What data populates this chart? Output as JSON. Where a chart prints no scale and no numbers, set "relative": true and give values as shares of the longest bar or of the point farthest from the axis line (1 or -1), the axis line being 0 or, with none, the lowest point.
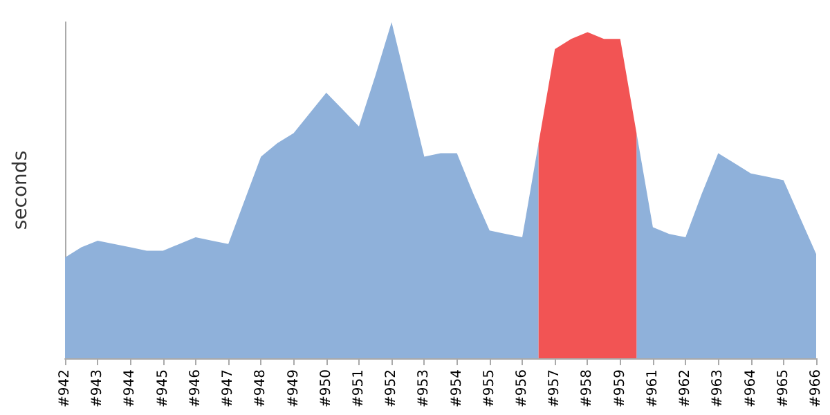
{
  "chart_data": {
    "type": "area",
    "ylabel": "seconds",
    "relative": true,
    "marker": "none",
    "categories": [
      "#942",
      null,
      "#943",
      null,
      "#944",
      null,
      "#945",
      null,
      "#946",
      null,
      "#947",
      null,
      "#948",
      null,
      "#949",
      null,
      "#950",
      null,
      "#951",
      null,
      "#952",
      null,
      "#953",
      null,
      "#954",
      null,
      "#955",
      null,
      "#956",
      null,
      "#957",
      null,
      "#958",
      null,
      "#959",
      null,
      "#961",
      null,
      "#962",
      null,
      "#963",
      null,
      "#964",
      null,
      "#965",
      null,
      "#966"
    ],
    "series": [
      {
        "color": "#8fb1da",
        "values": [
          0.3,
          0.33,
          0.35,
          0.34,
          0.33,
          0.32,
          0.32,
          0.34,
          0.36,
          0.35,
          0.34,
          0.47,
          0.6,
          0.64,
          0.67,
          0.73,
          0.79,
          0.74,
          0.69,
          0.84,
          1,
          0.8,
          0.6,
          0.61,
          0.61,
          0.49,
          0.38,
          0.37,
          0.36,
          0.64,
          null,
          null,
          null,
          null,
          null,
          0.67,
          0.39,
          0.37,
          0.36,
          0.49,
          0.61,
          0.58,
          0.55,
          0.54,
          0.53,
          0.42,
          0.31
        ]
      },
      {
        "color": "#f25454",
        "values": [
          null,
          null,
          null,
          null,
          null,
          null,
          null,
          null,
          null,
          null,
          null,
          null,
          null,
          null,
          null,
          null,
          null,
          null,
          null,
          null,
          null,
          null,
          null,
          null,
          null,
          null,
          null,
          null,
          null,
          0.64,
          0.92,
          0.95,
          0.97,
          0.95,
          0.95,
          0.67,
          null,
          null,
          null,
          null,
          null,
          null,
          null,
          null,
          null,
          null,
          null
        ]
      }
    ]
  }
}
